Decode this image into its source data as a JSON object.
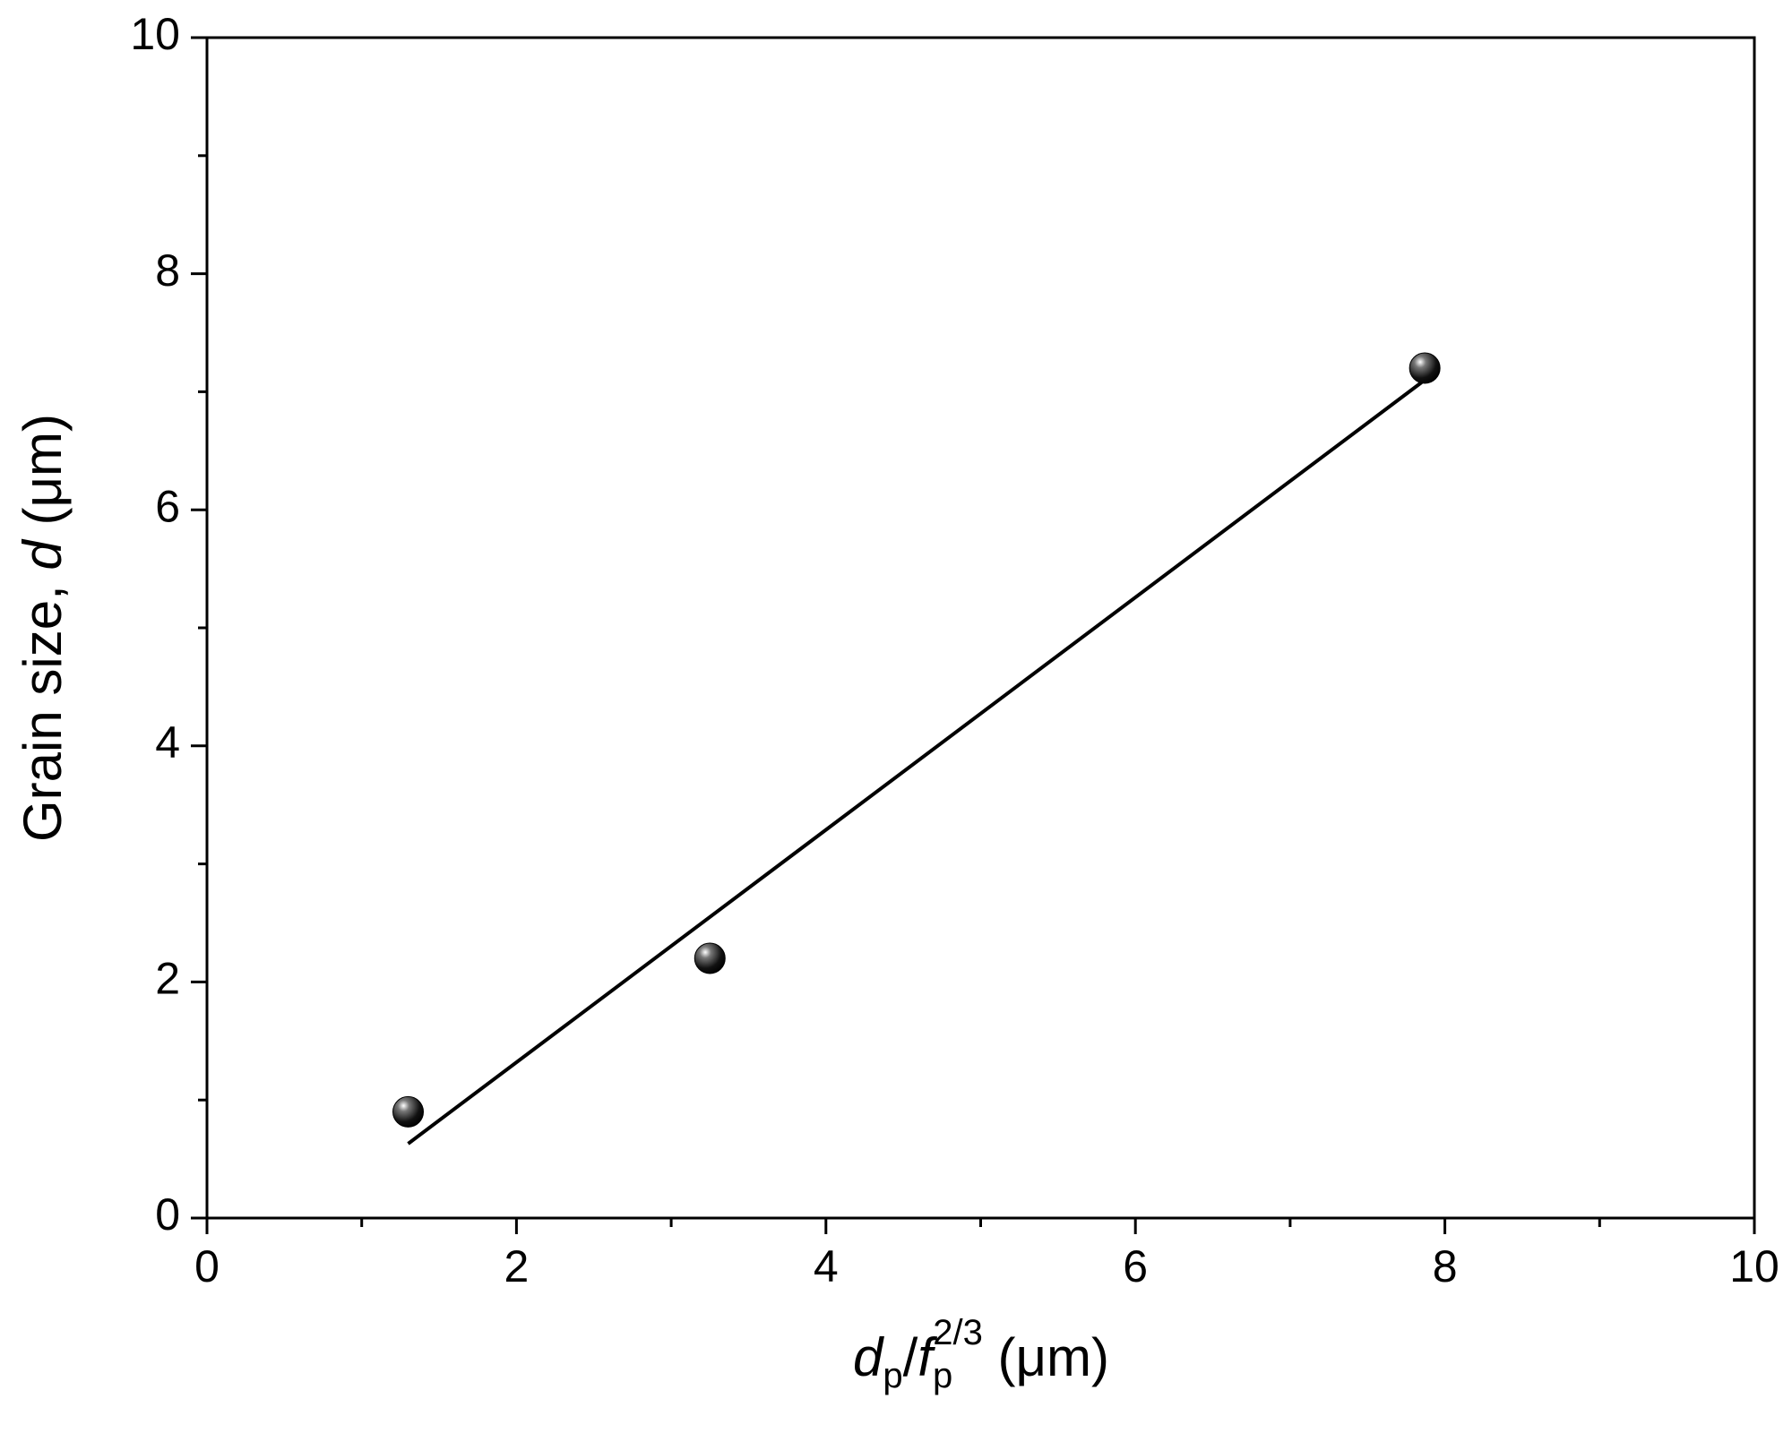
{
  "chart_data": {
    "type": "scatter",
    "xlabel": [
      "d",
      "p",
      "/",
      "f",
      "p",
      "2/3",
      " (μm)"
    ],
    "ylabel": [
      "Grain size, ",
      "d",
      " (μm)"
    ],
    "xlim": [
      0,
      10
    ],
    "xticks": [
      0,
      2,
      4,
      6,
      8,
      10
    ],
    "xminorticks": [
      1,
      3,
      5,
      7,
      9
    ],
    "ylim": [
      0,
      10
    ],
    "yticks": [
      0,
      2,
      4,
      6,
      8,
      10
    ],
    "yminorticks": [
      1,
      3,
      5,
      7,
      9
    ],
    "series": [
      {
        "type": "scatter",
        "color": "#000000",
        "x": [
          1.3,
          3.25,
          7.87
        ],
        "values": [
          0.9,
          2.2,
          7.2
        ]
      },
      {
        "type": "line",
        "color": "#000000",
        "x": [
          1.3,
          7.85
        ],
        "values": [
          0.63,
          7.08
        ]
      }
    ]
  }
}
